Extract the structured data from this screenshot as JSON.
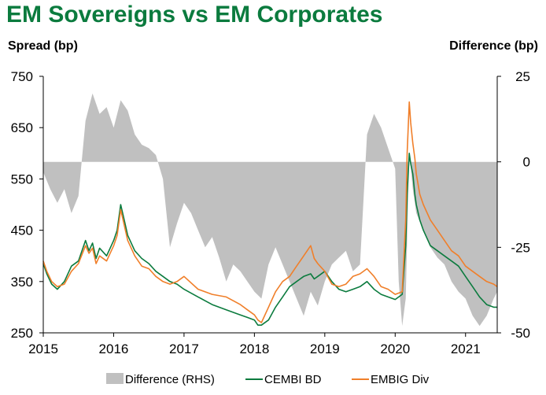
{
  "title": "EM Sovereigns vs EM Corporates",
  "chart_data": {
    "type": "line",
    "title": "EM Sovereigns vs EM Corporates",
    "ylabel": "Spread (bp)",
    "y2label": "Difference (bp)",
    "ylim": [
      250,
      750
    ],
    "y2lim": [
      -50,
      25
    ],
    "yticks": [
      "250",
      "350",
      "450",
      "550",
      "650",
      "750"
    ],
    "y2ticks": [
      "25",
      "0",
      "-25",
      "-50"
    ],
    "xlim": [
      2015.0,
      2021.45
    ],
    "xticks": [
      "2015",
      "2016",
      "2017",
      "2018",
      "2019",
      "2020",
      "2021"
    ],
    "grid": false,
    "legend_position": "bottom",
    "colors": {
      "difference": "#c0c0c0",
      "cembi": "#0b7b3e",
      "embig": "#f07f2a"
    },
    "series": [
      {
        "name": "CEMBI BD",
        "axis": "left",
        "x": [
          2015.0,
          2015.05,
          2015.12,
          2015.2,
          2015.3,
          2015.4,
          2015.5,
          2015.6,
          2015.65,
          2015.7,
          2015.75,
          2015.8,
          2015.9,
          2016.0,
          2016.05,
          2016.1,
          2016.15,
          2016.2,
          2016.3,
          2016.4,
          2016.5,
          2016.6,
          2016.7,
          2016.8,
          2016.9,
          2017.0,
          2017.2,
          2017.4,
          2017.6,
          2017.8,
          2017.9,
          2018.0,
          2018.05,
          2018.1,
          2018.2,
          2018.3,
          2018.4,
          2018.5,
          2018.6,
          2018.7,
          2018.8,
          2018.85,
          2018.9,
          2019.0,
          2019.1,
          2019.2,
          2019.3,
          2019.4,
          2019.5,
          2019.6,
          2019.7,
          2019.8,
          2019.9,
          2020.0,
          2020.1,
          2020.15,
          2020.17,
          2020.2,
          2020.22,
          2020.25,
          2020.28,
          2020.3,
          2020.35,
          2020.4,
          2020.5,
          2020.6,
          2020.7,
          2020.8,
          2020.9,
          2021.0,
          2021.1,
          2021.2,
          2021.3,
          2021.4,
          2021.45
        ],
        "values": [
          385,
          365,
          345,
          335,
          350,
          380,
          390,
          430,
          410,
          425,
          395,
          415,
          400,
          430,
          450,
          500,
          470,
          440,
          410,
          395,
          385,
          370,
          360,
          350,
          345,
          335,
          320,
          305,
          295,
          285,
          280,
          275,
          265,
          265,
          275,
          300,
          320,
          340,
          350,
          360,
          365,
          355,
          360,
          370,
          350,
          335,
          330,
          335,
          340,
          350,
          335,
          325,
          320,
          315,
          325,
          420,
          520,
          600,
          580,
          560,
          520,
          500,
          470,
          450,
          420,
          410,
          400,
          390,
          380,
          360,
          340,
          320,
          305,
          300,
          300
        ]
      },
      {
        "name": "EMBIG Div",
        "axis": "left",
        "x": [
          2015.0,
          2015.05,
          2015.12,
          2015.2,
          2015.3,
          2015.4,
          2015.5,
          2015.6,
          2015.65,
          2015.7,
          2015.75,
          2015.8,
          2015.9,
          2016.0,
          2016.05,
          2016.1,
          2016.15,
          2016.2,
          2016.3,
          2016.4,
          2016.5,
          2016.6,
          2016.7,
          2016.8,
          2016.9,
          2017.0,
          2017.2,
          2017.4,
          2017.6,
          2017.8,
          2017.9,
          2018.0,
          2018.05,
          2018.1,
          2018.2,
          2018.3,
          2018.4,
          2018.5,
          2018.6,
          2018.7,
          2018.8,
          2018.85,
          2018.9,
          2019.0,
          2019.1,
          2019.2,
          2019.3,
          2019.4,
          2019.5,
          2019.6,
          2019.7,
          2019.8,
          2019.9,
          2020.0,
          2020.1,
          2020.15,
          2020.17,
          2020.2,
          2020.22,
          2020.25,
          2020.28,
          2020.3,
          2020.35,
          2020.4,
          2020.5,
          2020.6,
          2020.7,
          2020.8,
          2020.9,
          2021.0,
          2021.1,
          2021.2,
          2021.3,
          2021.4,
          2021.45
        ],
        "values": [
          390,
          370,
          350,
          340,
          345,
          370,
          385,
          420,
          405,
          415,
          385,
          400,
          390,
          420,
          440,
          490,
          460,
          430,
          400,
          380,
          375,
          360,
          350,
          345,
          350,
          360,
          335,
          325,
          320,
          305,
          295,
          285,
          275,
          270,
          300,
          330,
          350,
          360,
          380,
          400,
          420,
          395,
          385,
          370,
          345,
          340,
          345,
          360,
          365,
          375,
          360,
          340,
          335,
          325,
          330,
          470,
          600,
          700,
          660,
          620,
          590,
          560,
          520,
          500,
          470,
          450,
          430,
          410,
          400,
          380,
          370,
          360,
          350,
          345,
          340
        ]
      },
      {
        "name": "Difference (RHS)",
        "axis": "right",
        "type": "area",
        "x": [
          2015.0,
          2015.1,
          2015.2,
          2015.3,
          2015.4,
          2015.5,
          2015.6,
          2015.7,
          2015.8,
          2015.9,
          2016.0,
          2016.1,
          2016.2,
          2016.3,
          2016.4,
          2016.5,
          2016.6,
          2016.7,
          2016.8,
          2016.9,
          2017.0,
          2017.1,
          2017.2,
          2017.3,
          2017.4,
          2017.5,
          2017.6,
          2017.7,
          2017.8,
          2017.9,
          2018.0,
          2018.1,
          2018.2,
          2018.3,
          2018.4,
          2018.5,
          2018.6,
          2018.7,
          2018.8,
          2018.9,
          2019.0,
          2019.1,
          2019.2,
          2019.3,
          2019.4,
          2019.5,
          2019.6,
          2019.7,
          2019.8,
          2019.9,
          2020.0,
          2020.05,
          2020.1,
          2020.15,
          2020.2,
          2020.25,
          2020.3,
          2020.4,
          2020.5,
          2020.6,
          2020.7,
          2020.8,
          2020.9,
          2021.0,
          2021.1,
          2021.2,
          2021.3,
          2021.4,
          2021.45
        ],
        "values": [
          -3,
          -8,
          -12,
          -8,
          -15,
          -10,
          12,
          20,
          14,
          16,
          10,
          18,
          15,
          8,
          5,
          4,
          2,
          -5,
          -25,
          -18,
          -12,
          -15,
          -20,
          -25,
          -22,
          -28,
          -35,
          -30,
          -32,
          -35,
          -38,
          -40,
          -30,
          -25,
          -30,
          -35,
          -40,
          -45,
          -38,
          -42,
          -35,
          -30,
          -28,
          -26,
          -32,
          -30,
          8,
          14,
          10,
          4,
          -2,
          -35,
          -48,
          -40,
          3,
          -8,
          -15,
          -20,
          -25,
          -28,
          -30,
          -35,
          -38,
          -40,
          -45,
          -48,
          -45,
          -40,
          -38
        ]
      }
    ]
  },
  "legend": [
    {
      "label": "Difference (RHS)"
    },
    {
      "label": "CEMBI BD"
    },
    {
      "label": "EMBIG Div"
    }
  ]
}
